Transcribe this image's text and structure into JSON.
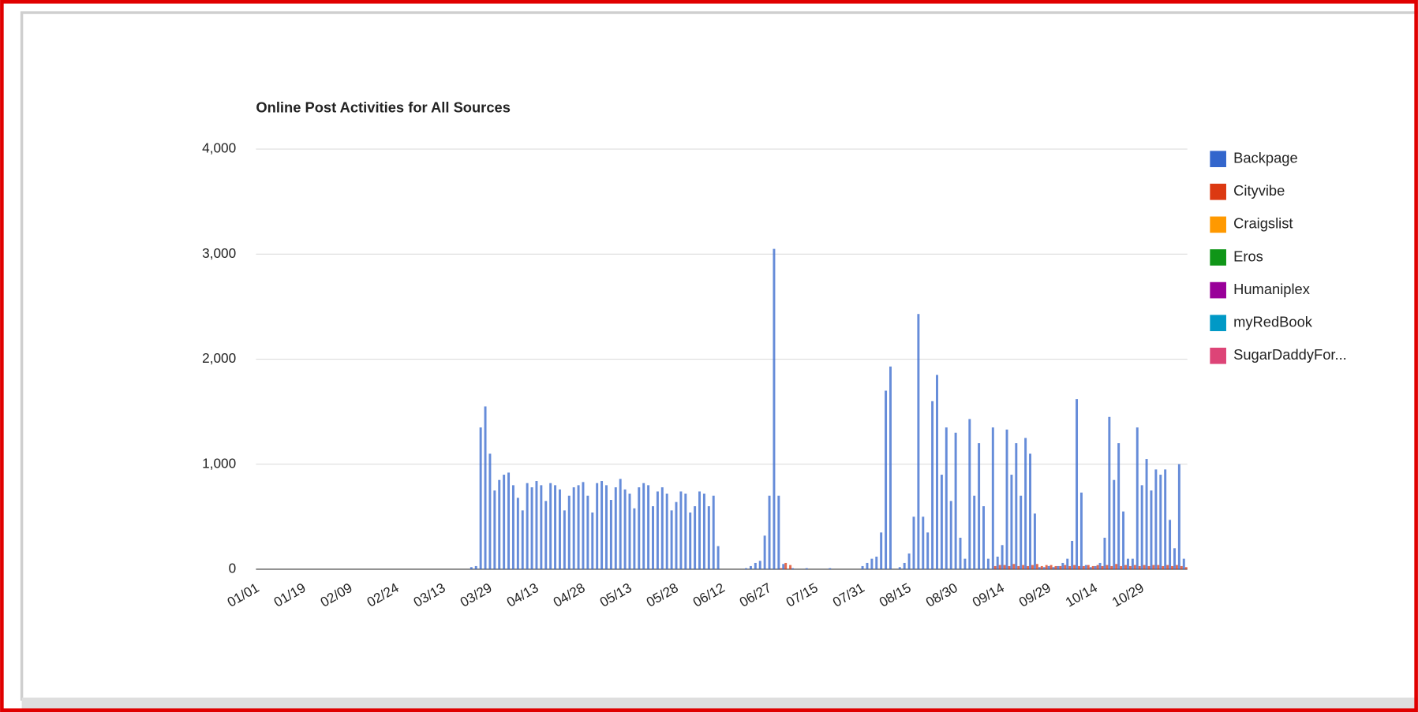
{
  "chart_data": {
    "type": "bar",
    "title": "Online Post Activities for All Sources",
    "categories": [
      "01/01",
      null,
      null,
      null,
      null,
      null,
      null,
      null,
      null,
      null,
      "01/19",
      null,
      null,
      null,
      null,
      null,
      null,
      null,
      null,
      null,
      "02/09",
      null,
      null,
      null,
      null,
      null,
      null,
      null,
      null,
      null,
      "02/24",
      null,
      null,
      null,
      null,
      null,
      null,
      null,
      null,
      null,
      "03/13",
      null,
      null,
      null,
      null,
      null,
      null,
      null,
      null,
      null,
      "03/29",
      null,
      null,
      null,
      null,
      null,
      null,
      null,
      null,
      null,
      "04/13",
      null,
      null,
      null,
      null,
      null,
      null,
      null,
      null,
      null,
      "04/28",
      null,
      null,
      null,
      null,
      null,
      null,
      null,
      null,
      null,
      "05/13",
      null,
      null,
      null,
      null,
      null,
      null,
      null,
      null,
      null,
      "05/28",
      null,
      null,
      null,
      null,
      null,
      null,
      null,
      null,
      null,
      "06/12",
      null,
      null,
      null,
      null,
      null,
      null,
      null,
      null,
      null,
      "06/27",
      null,
      null,
      null,
      null,
      null,
      null,
      null,
      null,
      null,
      "07/15",
      null,
      null,
      null,
      null,
      null,
      null,
      null,
      null,
      null,
      "07/31",
      null,
      null,
      null,
      null,
      null,
      null,
      null,
      null,
      null,
      "08/15",
      null,
      null,
      null,
      null,
      null,
      null,
      null,
      null,
      null,
      "08/30",
      null,
      null,
      null,
      null,
      null,
      null,
      null,
      null,
      null,
      "09/14",
      null,
      null,
      null,
      null,
      null,
      null,
      null,
      null,
      null,
      "09/29",
      null,
      null,
      null,
      null,
      null,
      null,
      null,
      null,
      null,
      "10/14",
      null,
      null,
      null,
      null,
      null,
      null,
      null,
      null,
      null,
      "10/29",
      null,
      null,
      null,
      null,
      null,
      null,
      null,
      null,
      null
    ],
    "series": [
      {
        "name": "Backpage",
        "color": "#3366cc",
        "values": [
          0,
          0,
          0,
          0,
          0,
          0,
          0,
          0,
          0,
          0,
          0,
          0,
          0,
          0,
          0,
          0,
          0,
          0,
          0,
          0,
          0,
          0,
          0,
          0,
          0,
          0,
          0,
          0,
          0,
          0,
          0,
          0,
          0,
          0,
          0,
          0,
          0,
          0,
          0,
          0,
          0,
          0,
          0,
          0,
          0,
          0,
          20,
          30,
          1350,
          1550,
          1100,
          750,
          850,
          900,
          920,
          800,
          680,
          560,
          820,
          780,
          840,
          800,
          650,
          820,
          800,
          760,
          560,
          700,
          780,
          800,
          830,
          700,
          540,
          820,
          840,
          800,
          660,
          780,
          860,
          760,
          720,
          580,
          780,
          820,
          800,
          600,
          740,
          780,
          720,
          560,
          640,
          740,
          720,
          540,
          600,
          740,
          720,
          600,
          700,
          220,
          0,
          0,
          0,
          0,
          0,
          10,
          30,
          60,
          80,
          320,
          700,
          3050,
          700,
          50,
          0,
          10,
          0,
          0,
          10,
          0,
          0,
          0,
          0,
          10,
          0,
          0,
          0,
          0,
          0,
          0,
          30,
          60,
          100,
          120,
          350,
          1700,
          1930,
          0,
          20,
          60,
          150,
          500,
          2430,
          500,
          350,
          1600,
          1850,
          900,
          1350,
          650,
          1300,
          300,
          100,
          1430,
          700,
          1200,
          600,
          100,
          1350,
          120,
          230,
          1330,
          900,
          1200,
          700,
          1250,
          1100,
          530,
          20,
          20,
          30,
          20,
          30,
          60,
          100,
          270,
          1620,
          730,
          40,
          20,
          30,
          60,
          300,
          1450,
          850,
          1200,
          550,
          100,
          100,
          1350,
          800,
          1050,
          750,
          950,
          900,
          950,
          470,
          200,
          1000,
          100
        ]
      },
      {
        "name": "Cityvibe",
        "color": "#dc3912",
        "values": [
          0,
          0,
          0,
          0,
          0,
          0,
          0,
          0,
          0,
          0,
          0,
          0,
          0,
          0,
          0,
          0,
          0,
          0,
          0,
          0,
          0,
          0,
          0,
          0,
          0,
          0,
          0,
          0,
          0,
          0,
          0,
          0,
          0,
          0,
          0,
          0,
          0,
          0,
          0,
          0,
          0,
          0,
          0,
          0,
          0,
          0,
          0,
          0,
          0,
          0,
          0,
          0,
          0,
          0,
          0,
          0,
          0,
          0,
          0,
          0,
          0,
          0,
          0,
          0,
          0,
          0,
          0,
          0,
          0,
          0,
          0,
          0,
          0,
          0,
          0,
          0,
          0,
          0,
          0,
          0,
          0,
          0,
          0,
          0,
          0,
          0,
          0,
          0,
          0,
          0,
          0,
          0,
          0,
          0,
          0,
          0,
          0,
          0,
          0,
          0,
          0,
          0,
          0,
          0,
          0,
          0,
          0,
          0,
          0,
          0,
          0,
          0,
          10,
          60,
          40,
          0,
          0,
          0,
          0,
          0,
          0,
          0,
          0,
          0,
          0,
          0,
          0,
          0,
          0,
          0,
          0,
          0,
          0,
          0,
          0,
          0,
          0,
          0,
          0,
          0,
          0,
          0,
          0,
          0,
          0,
          0,
          0,
          0,
          0,
          0,
          0,
          0,
          0,
          0,
          0,
          0,
          0,
          0,
          30,
          40,
          40,
          30,
          50,
          30,
          40,
          30,
          40,
          50,
          30,
          40,
          40,
          30,
          30,
          40,
          30,
          40,
          30,
          30,
          40,
          30,
          40,
          30,
          40,
          30,
          50,
          30,
          40,
          30,
          40,
          30,
          40,
          30,
          40,
          40,
          30,
          40,
          30,
          40,
          30,
          20
        ]
      },
      {
        "name": "Craigslist",
        "color": "#ff9900"
      },
      {
        "name": "Eros",
        "color": "#109618"
      },
      {
        "name": "Humaniplex",
        "color": "#990099"
      },
      {
        "name": "myRedBook",
        "color": "#0099c6"
      },
      {
        "name": "SugarDaddyFor...",
        "color": "#dd4477"
      }
    ],
    "ylim": [
      0,
      4000
    ],
    "yticks": [
      0,
      {
        "value": 1000,
        "label": "1,000"
      },
      {
        "value": 2000,
        "label": "2,000"
      },
      {
        "value": 3000,
        "label": "3,000"
      },
      {
        "value": 4000,
        "label": "4,000"
      }
    ],
    "grid": true,
    "legend": "right"
  }
}
